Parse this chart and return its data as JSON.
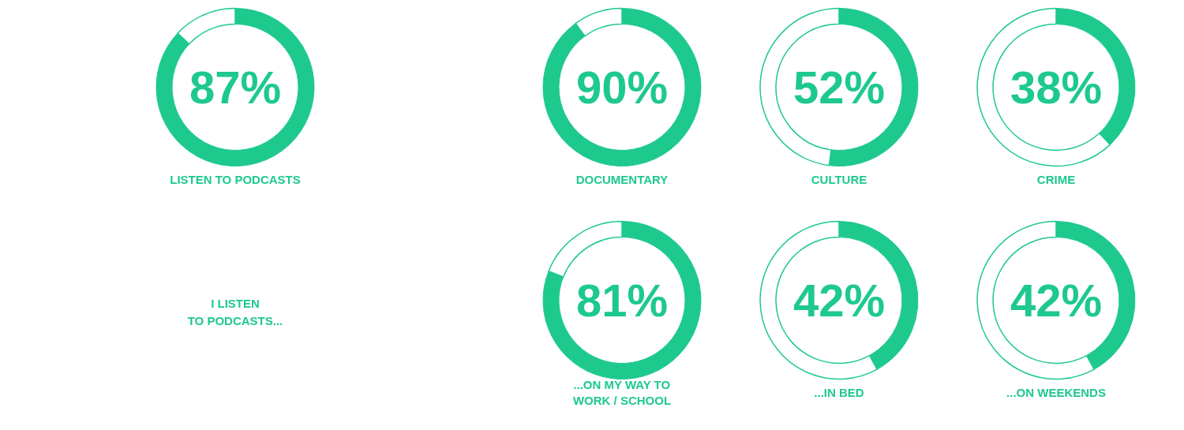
{
  "chart_data": [
    {
      "type": "donut",
      "title": "LISTEN TO PODCASTS",
      "categories": [
        null,
        null
      ],
      "values": [
        87,
        13
      ],
      "colors": [
        "#1ec98d",
        "#ffffff"
      ],
      "value_labels": [
        "87%",
        null
      ]
    },
    {
      "type": "donut",
      "title": "DOCUMENTARY",
      "categories": [
        null,
        null
      ],
      "values": [
        90,
        10
      ],
      "colors": [
        "#1ec98d",
        "#ffffff"
      ],
      "value_labels": [
        "90%",
        null
      ]
    },
    {
      "type": "donut",
      "title": "CULTURE",
      "categories": [
        null,
        null
      ],
      "values": [
        52,
        48
      ],
      "colors": [
        "#1ec98d",
        "#ffffff"
      ],
      "value_labels": [
        "52%",
        null
      ]
    },
    {
      "type": "donut",
      "title": "CRIME",
      "categories": [
        null,
        null
      ],
      "values": [
        38,
        62
      ],
      "colors": [
        "#1ec98d",
        "#ffffff"
      ],
      "value_labels": [
        "38%",
        null
      ]
    },
    {
      "type": "other",
      "title": "I LISTEN\nTO PODCASTS..."
    },
    {
      "type": "donut",
      "title": "...ON MY WAY TO\nWORK / SCHOOL",
      "categories": [
        null,
        null
      ],
      "values": [
        81,
        19
      ],
      "colors": [
        "#1ec98d",
        "#ffffff"
      ],
      "value_labels": [
        "81%",
        null
      ]
    },
    {
      "type": "donut",
      "title": "...IN BED",
      "categories": [
        null,
        null
      ],
      "values": [
        42,
        58
      ],
      "colors": [
        "#1ec98d",
        "#ffffff"
      ],
      "value_labels": [
        "42%",
        null
      ]
    },
    {
      "type": "donut",
      "title": "...ON WEEKENDS",
      "categories": [
        null,
        null
      ],
      "values": [
        42,
        58
      ],
      "colors": [
        "#1ec98d",
        "#ffffff"
      ],
      "value_labels": [
        "42%",
        null
      ]
    }
  ]
}
